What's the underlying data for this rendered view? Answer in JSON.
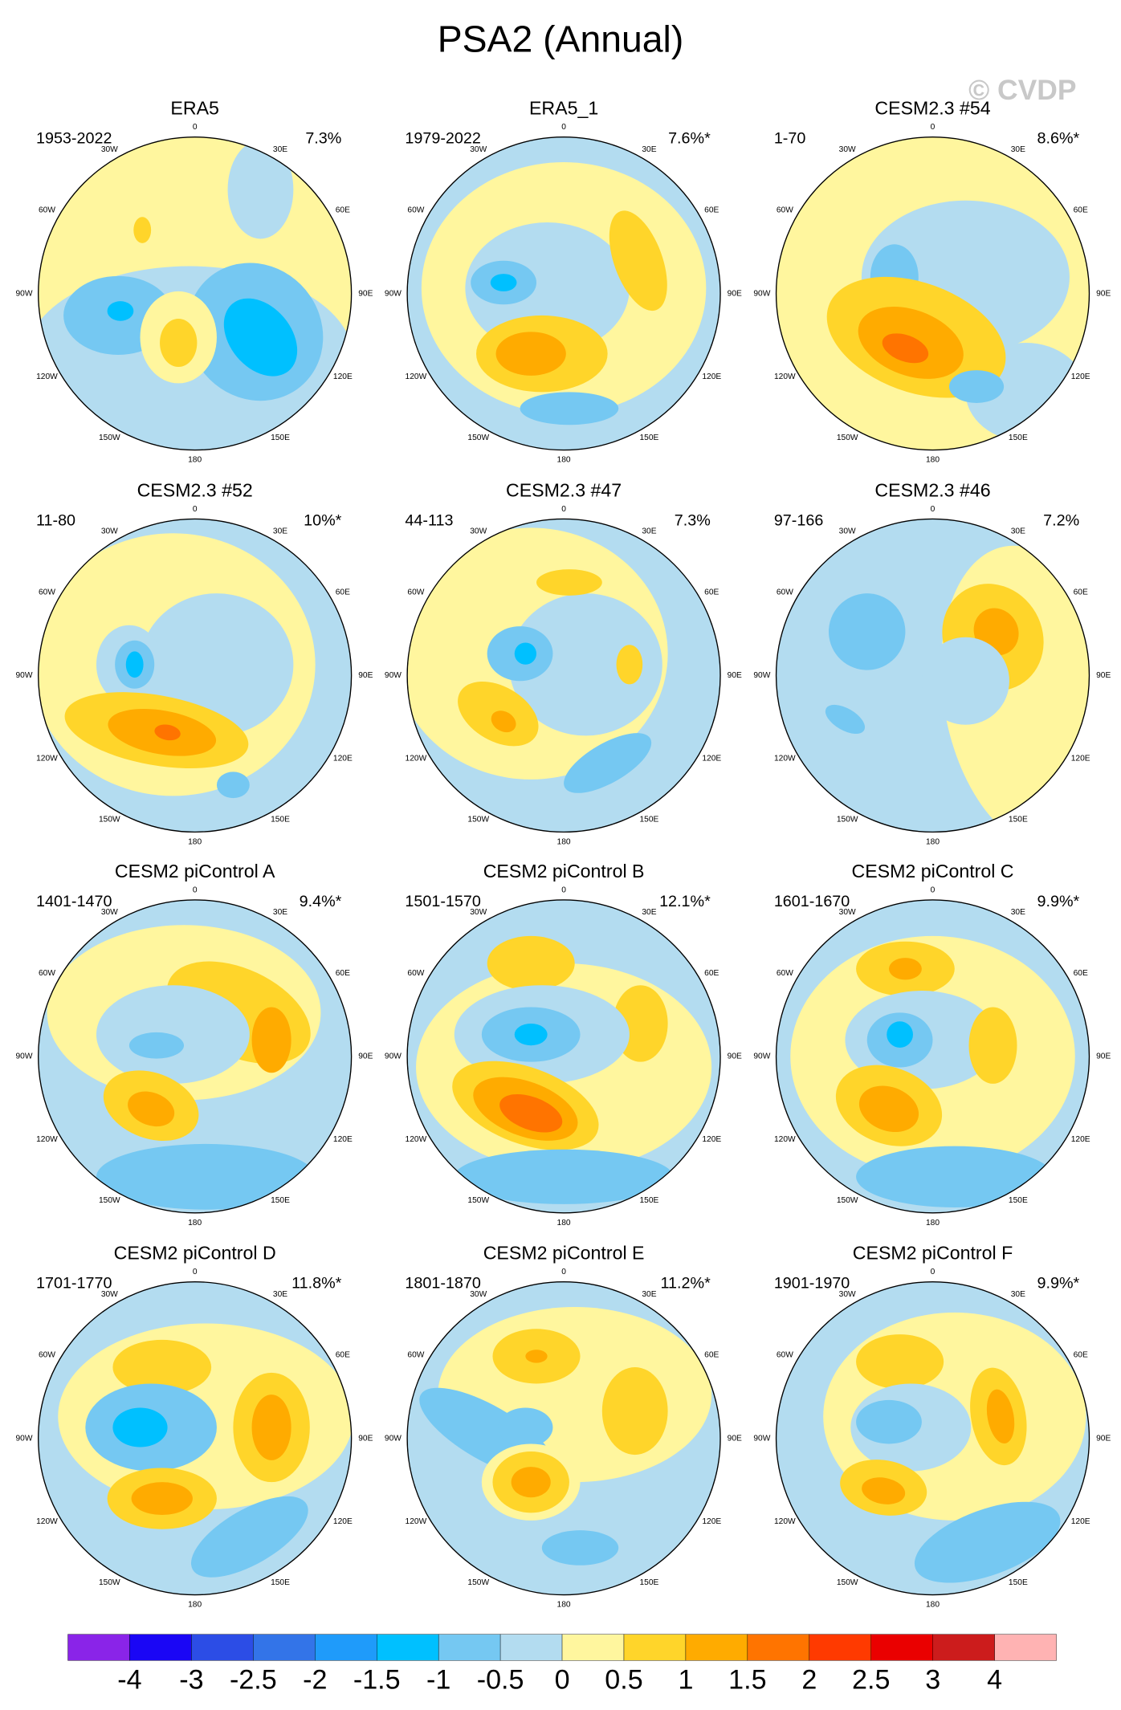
{
  "title": "PSA2 (Annual)",
  "watermark": "© CVDP",
  "longitude_labels": [
    "0",
    "30E",
    "60E",
    "90E",
    "120E",
    "150E",
    "180",
    "150W",
    "120W",
    "90W",
    "60W",
    "30W"
  ],
  "panels": [
    {
      "title": "ERA5",
      "period": "1953-2022",
      "variance": "7.3%"
    },
    {
      "title": "ERA5_1",
      "period": "1979-2022",
      "variance": "7.6%*"
    },
    {
      "title": "CESM2.3 #54",
      "period": "1-70",
      "variance": "8.6%*"
    },
    {
      "title": "CESM2.3 #52",
      "period": "11-80",
      "variance": "10%*"
    },
    {
      "title": "CESM2.3 #47",
      "period": "44-113",
      "variance": "7.3%"
    },
    {
      "title": "CESM2.3 #46",
      "period": "97-166",
      "variance": "7.2%"
    },
    {
      "title": "CESM2 piControl A",
      "period": "1401-1470",
      "variance": "9.4%*"
    },
    {
      "title": "CESM2 piControl B",
      "period": "1501-1570",
      "variance": "12.1%*"
    },
    {
      "title": "CESM2 piControl C",
      "period": "1601-1670",
      "variance": "9.9%*"
    },
    {
      "title": "CESM2 piControl D",
      "period": "1701-1770",
      "variance": "11.8%*"
    },
    {
      "title": "CESM2 piControl E",
      "period": "1801-1870",
      "variance": "11.2%*"
    },
    {
      "title": "CESM2 piControl F",
      "period": "1901-1970",
      "variance": "9.9%*"
    }
  ],
  "colorbar": {
    "colors": [
      "#8a24e8",
      "#1a06f5",
      "#2c4de6",
      "#3374e8",
      "#1f9bfa",
      "#00c0ff",
      "#75c8f2",
      "#b3dcf0",
      "#fff69e",
      "#ffd52a",
      "#ffab00",
      "#ff7400",
      "#ff3a00",
      "#ea0000",
      "#cc1c1c",
      "#ffb3b3"
    ],
    "labels": [
      -4,
      -3,
      -2.5,
      -2,
      -1.5,
      -1,
      -0.5,
      0,
      0.5,
      1,
      1.5,
      2,
      2.5,
      3,
      4
    ]
  }
}
